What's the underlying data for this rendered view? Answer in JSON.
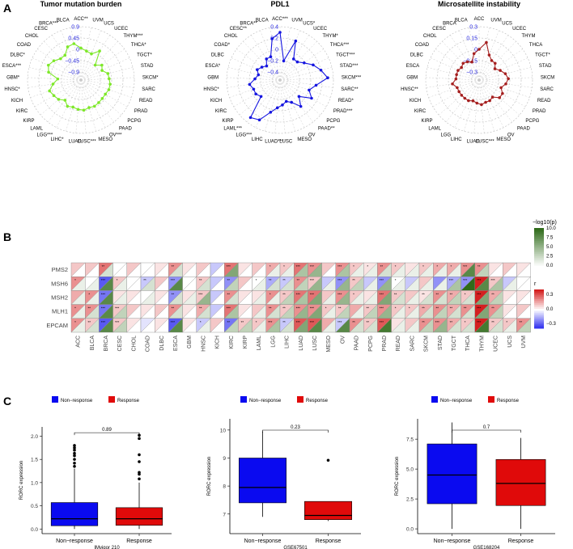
{
  "panels": {
    "a": "A",
    "b": "B",
    "c": "C"
  },
  "chart_data": [
    {
      "type": "radar",
      "title": "Tumor mutation burden",
      "color": "#7ee82a",
      "rticks": [
        "0.9",
        "0.45",
        "0",
        "−0.45",
        "−0.9"
      ],
      "rlim": [
        -0.9,
        0.9
      ],
      "categories": [
        "ACC**",
        "UVM",
        "UCS",
        "UCEC",
        "THYM***",
        "THCA*",
        "TGCT*",
        "STAD",
        "SKCM*",
        "SARC",
        "READ",
        "PRAD",
        "PCPG",
        "PAAD",
        "OV***",
        "MESO",
        "LUSC***",
        "LUAD",
        "LIHC*",
        "LGG***",
        "LAML",
        "KIRP",
        "KIRC",
        "KICH",
        "HNSC*",
        "GBM*",
        "ESCA***",
        "DLBC*",
        "COAD",
        "CHOL",
        "CESC",
        "BRCA***",
        "BLCA"
      ],
      "values": [
        0.05,
        -0.05,
        -0.1,
        0.15,
        -0.4,
        -0.2,
        -0.3,
        -0.12,
        -0.1,
        -0.05,
        -0.05,
        -0.1,
        -0.1,
        -0.08,
        -0.05,
        -0.08,
        -0.02,
        -0.05,
        -0.1,
        -0.05,
        -0.2,
        -0.05,
        0.02,
        0.1,
        -0.1,
        -0.3,
        0.1,
        0.2,
        0.1,
        -0.05,
        -0.05,
        0.2,
        0.25
      ]
    },
    {
      "type": "radar",
      "title": "PDL1",
      "color": "#1515e0",
      "rticks": [
        "0.4",
        "0.2",
        "0",
        "−0.2",
        "−0.4"
      ],
      "rlim": [
        -0.4,
        0.4
      ],
      "categories": [
        "ACC***",
        "UVM",
        "UCS*",
        "UCEC",
        "THYM*",
        "THCA***",
        "TGCT***",
        "STAD***",
        "SKCM***",
        "SARC**",
        "READ*",
        "PRAD***",
        "PCPG",
        "PAAD**",
        "OV",
        "MESO",
        "LUSC",
        "LUAD***",
        "LIHC",
        "LGG***",
        "LAML***",
        "KIRP",
        "KIRC",
        "KICH",
        "HNSC*",
        "GBM",
        "ESCA*",
        "DLBC",
        "COAD*",
        "CHOL",
        "CESC**",
        "BRCA**",
        "BLCA"
      ],
      "values": [
        0.3,
        -0.2,
        0.2,
        -0.1,
        -0.1,
        -0.02,
        0.1,
        0.2,
        0.3,
        0.1,
        0.0,
        0.1,
        -0.1,
        0.05,
        -0.1,
        -0.15,
        -0.1,
        -0.05,
        0.05,
        0.25,
        0.3,
        -0.1,
        -0.05,
        -0.05,
        0.0,
        -0.1,
        -0.15,
        -0.1,
        -0.15,
        -0.2,
        -0.1,
        -0.1,
        0.2
      ]
    },
    {
      "type": "radar",
      "title": "Microsatellite instability",
      "color": "#a52020",
      "rticks": [
        "0.3",
        "0.15",
        "0",
        "−0.15",
        "−0.3"
      ],
      "rlim": [
        -0.3,
        0.3
      ],
      "categories": [
        "ACC",
        "UVM",
        "UCS",
        "UCEC",
        "THYM",
        "THCA",
        "TGCT*",
        "STAD",
        "SKCM",
        "SARC",
        "READ",
        "PRAD",
        "PCPG",
        "PAAD",
        "OV",
        "MESO",
        "LUSC***",
        "LUAD",
        "LIHC",
        "LGG",
        "LAML",
        "KIRP",
        "KIRC",
        "KICH",
        "HNSC**",
        "GBM",
        "ESCA",
        "DLBC",
        "COAD",
        "CHOL",
        "CESC",
        "BRCA",
        "BLCA"
      ],
      "values": [
        0.0,
        0.1,
        -0.05,
        -0.1,
        -0.1,
        -0.15,
        -0.1,
        -0.05,
        -0.02,
        -0.05,
        -0.1,
        -0.05,
        -0.05,
        -0.12,
        -0.1,
        -0.1,
        -0.08,
        -0.1,
        -0.12,
        -0.1,
        -0.1,
        -0.1,
        -0.1,
        -0.1,
        -0.05,
        -0.1,
        -0.1,
        -0.1,
        -0.12,
        -0.1,
        -0.12,
        -0.15,
        -0.05
      ]
    },
    {
      "type": "heatmap",
      "rows": [
        "PMS2",
        "MSH6",
        "MSH2",
        "MLH1",
        "EPCAM"
      ],
      "columns": [
        "ACC",
        "BLCA",
        "BRCA",
        "CESC",
        "CHOL",
        "COAD",
        "DLBC",
        "ESCA",
        "GBM",
        "HNSC",
        "KICH",
        "KIRC",
        "KIRP",
        "LAML",
        "LGG",
        "LIHC",
        "LUAD",
        "LUSC",
        "MESO",
        "OV",
        "PAAD",
        "PCPG",
        "PRAD",
        "READ",
        "SARC",
        "SKCM",
        "STAD",
        "TGCT",
        "THCA",
        "THYM",
        "UCEC",
        "UCS",
        "UVM"
      ],
      "r": [
        [
          0.1,
          0.1,
          0.25,
          0.0,
          0.1,
          0.0,
          0.05,
          0.2,
          0.05,
          0.1,
          -0.1,
          0.25,
          0.05,
          0.1,
          0.15,
          0.1,
          0.25,
          0.2,
          0.1,
          0.2,
          0.1,
          0.05,
          0.2,
          0.1,
          0.05,
          0.1,
          0.15,
          0.15,
          0.2,
          0.2,
          0.05,
          0.1,
          0.05
        ],
        [
          0.2,
          0.0,
          -0.3,
          0.1,
          0.0,
          -0.1,
          0.1,
          -0.2,
          0.0,
          0.1,
          -0.1,
          -0.2,
          0.1,
          0.0,
          -0.15,
          -0.1,
          0.2,
          0.1,
          -0.1,
          -0.2,
          0.1,
          -0.1,
          -0.2,
          0.0,
          -0.1,
          0.1,
          -0.2,
          -0.15,
          -0.2,
          0.4,
          0.1,
          -0.1,
          0.0
        ],
        [
          0.15,
          0.2,
          -0.25,
          0.05,
          0.05,
          0.0,
          0.05,
          -0.2,
          0.05,
          0.1,
          -0.1,
          0.2,
          0.05,
          0.05,
          0.2,
          0.1,
          0.25,
          0.25,
          0.1,
          0.2,
          0.1,
          0.05,
          0.25,
          0.1,
          0.1,
          0.05,
          0.2,
          0.15,
          0.1,
          0.4,
          0.15,
          0.05,
          0.05
        ],
        [
          0.2,
          0.2,
          -0.25,
          0.1,
          0.1,
          0.05,
          0.1,
          0.2,
          0.05,
          0.15,
          -0.1,
          0.25,
          0.05,
          0.1,
          0.2,
          0.1,
          0.2,
          0.2,
          0.1,
          0.1,
          0.15,
          0.1,
          0.2,
          0.1,
          0.1,
          0.15,
          0.2,
          0.15,
          0.2,
          0.4,
          0.2,
          0.05,
          0.1
        ],
        [
          0.2,
          0.1,
          -0.3,
          0.1,
          0.05,
          -0.05,
          0.05,
          -0.3,
          0.05,
          -0.1,
          0.1,
          -0.25,
          0.1,
          0.1,
          0.2,
          -0.1,
          0.3,
          0.3,
          0.15,
          -0.1,
          0.2,
          0.1,
          0.3,
          0.05,
          0.1,
          0.2,
          0.2,
          0.15,
          0.1,
          0.4,
          0.1,
          0.1,
          0.2
        ]
      ],
      "neglog10p": [
        [
          0,
          0,
          2,
          0,
          0,
          0,
          0,
          2,
          0,
          0,
          0,
          6,
          0,
          0,
          1,
          1,
          4,
          5,
          0,
          4,
          1,
          1,
          2,
          1,
          1,
          1,
          1,
          1,
          8,
          3,
          0,
          0,
          0
        ],
        [
          1,
          1,
          8,
          1,
          0,
          2,
          0,
          8,
          0,
          2,
          0,
          3,
          0,
          1,
          2,
          2,
          3,
          5,
          1,
          5,
          3,
          1,
          5,
          1,
          1,
          1,
          1,
          4,
          10,
          8,
          4,
          1,
          0
        ],
        [
          1,
          1,
          8,
          1,
          0,
          1,
          0,
          2,
          1,
          5,
          0,
          2,
          0,
          1,
          1,
          3,
          4,
          6,
          1,
          5,
          1,
          1,
          6,
          2,
          1,
          2,
          2,
          3,
          2,
          6,
          3,
          0,
          0
        ],
        [
          1,
          2,
          8,
          3,
          0,
          0,
          0,
          2,
          0,
          2,
          0,
          4,
          0,
          1,
          2,
          3,
          5,
          6,
          1,
          3,
          1,
          3,
          5,
          1,
          1,
          2,
          3,
          2,
          2,
          6,
          3,
          0,
          0
        ],
        [
          1,
          2,
          8,
          3,
          0,
          0,
          0,
          8,
          0,
          1,
          0,
          3,
          3,
          1,
          4,
          2,
          6,
          8,
          1,
          8,
          2,
          2,
          9,
          1,
          1,
          3,
          5,
          2,
          2,
          9,
          2,
          1,
          3
        ]
      ],
      "stars": [
        [
          "",
          "",
          "**",
          "",
          "",
          "",
          "",
          "**",
          "",
          "",
          "",
          "***",
          "",
          "",
          "*",
          "*",
          "***",
          "***",
          "",
          "***",
          "*",
          "*",
          "**",
          "*",
          "",
          "*",
          "*",
          "*",
          "***",
          "**",
          "",
          "",
          ""
        ],
        [
          "*",
          "",
          "***",
          "*",
          "",
          "**",
          "",
          "***",
          "",
          "**",
          "",
          "**",
          "",
          "*",
          "**",
          "**",
          "**",
          "***",
          "",
          "***",
          "**",
          "",
          "***",
          "*",
          "",
          "",
          "",
          "***",
          "***",
          "***",
          "***",
          "",
          ""
        ],
        [
          "",
          "*",
          "***",
          "",
          "",
          "",
          "",
          "**",
          "",
          "***",
          "",
          "**",
          "",
          "",
          "*",
          "**",
          "***",
          "***",
          "",
          "***",
          "*",
          "",
          "***",
          "**",
          "",
          "**",
          "**",
          "**",
          "*",
          "***",
          "**",
          "",
          ""
        ],
        [
          "*",
          "**",
          "***",
          "***",
          "",
          "",
          "",
          "**",
          "",
          "**",
          "",
          "***",
          "",
          "",
          "**",
          "**",
          "***",
          "***",
          "*",
          "**",
          "",
          "**",
          "***",
          "*",
          "*",
          "**",
          "**",
          "**",
          "**",
          "***",
          "**",
          "",
          ""
        ],
        [
          "*",
          "**",
          "***",
          "***",
          "",
          "",
          "",
          "***",
          "",
          "*",
          "",
          "**",
          "**",
          "*",
          "***",
          "**",
          "***",
          "***",
          "",
          "***",
          "**",
          "**",
          "***",
          "",
          "",
          "**",
          "***",
          "**",
          "*",
          "***",
          "**",
          "*",
          "**"
        ]
      ],
      "legend_p": {
        "title": "−log10(p)",
        "ticks": [
          "10.0",
          "7.5",
          "5.0",
          "2.5",
          "0.0"
        ],
        "max": 10,
        "color_low": "#ffffff",
        "color_high": "#2f6b1a"
      },
      "legend_r": {
        "title": "r",
        "ticks": [
          "0.3",
          "0.0",
          "−0.3"
        ],
        "min": -0.4,
        "max": 0.4,
        "color_neg": "#2222ee",
        "color_mid": "#ffffff",
        "color_pos": "#d42020"
      }
    },
    {
      "type": "boxplot",
      "xlabel": "IMvigor 210",
      "ylabel": "RORC expression",
      "categories": [
        "Non−response",
        "Response"
      ],
      "legend": [
        "Non−response",
        "Response"
      ],
      "colors": [
        "#0a0af0",
        "#e00a0a"
      ],
      "ylim": [
        -0.1,
        2.2
      ],
      "yticks": [
        "0.0",
        "0.5",
        "1.0",
        "1.5",
        "2.0"
      ],
      "p_value": "0.89",
      "stats": [
        {
          "min": 0.0,
          "q1": 0.07,
          "median": 0.22,
          "q3": 0.57,
          "max": 1.3,
          "outliers": [
            1.35,
            1.42,
            1.5,
            1.58,
            1.63,
            1.7,
            1.75,
            1.8
          ]
        },
        {
          "min": 0.0,
          "q1": 0.08,
          "median": 0.22,
          "q3": 0.46,
          "max": 1.0,
          "outliers": [
            1.08,
            1.18,
            1.22,
            1.45,
            1.6,
            1.95,
            2.02
          ]
        }
      ]
    },
    {
      "type": "boxplot",
      "xlabel": "GSE67501",
      "ylabel": "RORC expression",
      "categories": [
        "Non−response",
        "Response"
      ],
      "legend": [
        "Non−response",
        "Response"
      ],
      "colors": [
        "#0a0af0",
        "#e00a0a"
      ],
      "ylim": [
        6.3,
        10.4
      ],
      "yticks": [
        "7",
        "8",
        "9",
        "10"
      ],
      "p_value": "0.23",
      "stats": [
        {
          "min": 6.9,
          "q1": 7.4,
          "median": 7.95,
          "q3": 9.0,
          "max": 9.95,
          "outliers": []
        },
        {
          "min": 6.75,
          "q1": 6.8,
          "median": 6.95,
          "q3": 7.45,
          "max": 7.45,
          "outliers": [
            8.92
          ]
        }
      ]
    },
    {
      "type": "boxplot",
      "xlabel": "GSE168204",
      "ylabel": "RORC expression",
      "categories": [
        "Non−response",
        "Response"
      ],
      "legend": [
        "Non−response",
        "Response"
      ],
      "colors": [
        "#0a0af0",
        "#e00a0a"
      ],
      "ylim": [
        -0.4,
        9.2
      ],
      "yticks": [
        "0.0",
        "2.5",
        "5.0",
        "7.5"
      ],
      "p_value": "0.7",
      "stats": [
        {
          "min": 0.0,
          "q1": 2.1,
          "median": 4.5,
          "q3": 7.1,
          "max": 8.9,
          "outliers": []
        },
        {
          "min": 0.0,
          "q1": 1.95,
          "median": 3.8,
          "q3": 5.8,
          "max": 7.6,
          "outliers": []
        }
      ]
    }
  ]
}
